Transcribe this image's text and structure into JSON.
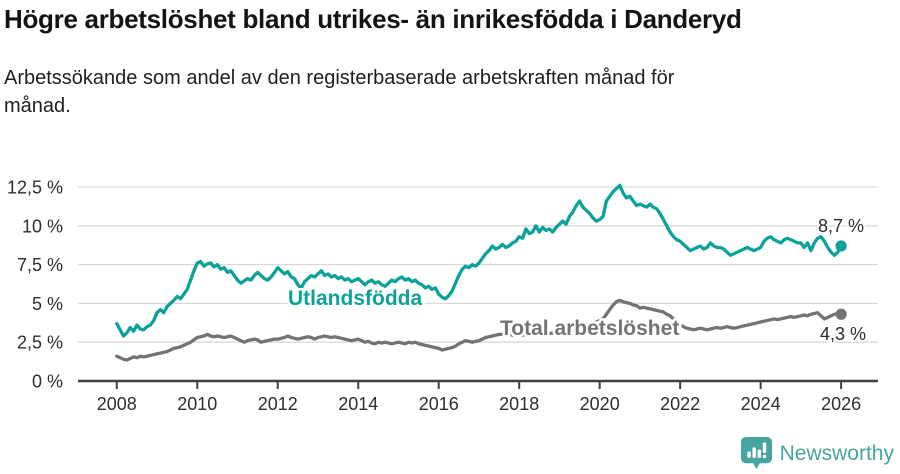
{
  "header": {
    "title": "Högre arbetslöshet bland utrikes- än inrikesfödda i Danderyd",
    "subtitle_lines": [
      "Arbetssökande som andel av den registerbaserade arbetskraften månad för",
      "månad."
    ]
  },
  "footer": {
    "brand": "Newsworthy"
  },
  "colors": {
    "accent_teal": "#0ca29a",
    "series_gray": "#737373",
    "logo_teal": "#47a4a1",
    "grid": "#d9d9d9",
    "axis": "#404040",
    "tick_text": "#2e2e2e"
  },
  "chart_data": {
    "type": "line",
    "title": "Högre arbetslöshet bland utrikes- än inrikesfödda i Danderyd",
    "subtitle": "Arbetssökande som andel av den registerbaserade arbetskraften månad för månad.",
    "x_unit": "year (monthly data)",
    "x_start": 2008.0,
    "x_step": 0.0833333,
    "x_ticks": [
      2008,
      2010,
      2012,
      2014,
      2016,
      2018,
      2020,
      2022,
      2024,
      2026
    ],
    "y_ticks": [
      0,
      2.5,
      5,
      7.5,
      10,
      12.5
    ],
    "y_tick_labels": [
      "0 %",
      "2,5 %",
      "5 %",
      "7,5 %",
      "10 %",
      "12,5 %"
    ],
    "ylim": [
      0,
      13.2
    ],
    "xlim": [
      2007.5,
      2026.9
    ],
    "grid": true,
    "legend_position": "inline-labels",
    "series": [
      {
        "name": "Utlandsfödda",
        "color": "#0ca29a",
        "end_label": "8,7 %",
        "end_value": 8.7,
        "values": [
          3.7,
          3.3,
          2.9,
          3.1,
          3.45,
          3.2,
          3.6,
          3.35,
          3.3,
          3.5,
          3.6,
          3.9,
          4.4,
          4.6,
          4.4,
          4.8,
          5.0,
          5.2,
          5.45,
          5.3,
          5.6,
          5.9,
          6.5,
          7.1,
          7.6,
          7.7,
          7.4,
          7.55,
          7.6,
          7.35,
          7.5,
          7.2,
          7.3,
          7.0,
          7.1,
          6.8,
          6.5,
          6.3,
          6.45,
          6.6,
          6.5,
          6.8,
          7.0,
          6.8,
          6.6,
          6.5,
          6.7,
          7.0,
          7.3,
          7.1,
          6.9,
          7.05,
          6.7,
          6.6,
          6.2,
          6.0,
          6.4,
          6.6,
          6.8,
          6.7,
          6.9,
          7.1,
          6.8,
          6.9,
          6.7,
          6.8,
          6.6,
          6.7,
          6.5,
          6.6,
          6.4,
          6.5,
          6.6,
          6.4,
          6.2,
          6.4,
          6.5,
          6.3,
          6.4,
          6.2,
          6.1,
          6.3,
          6.5,
          6.4,
          6.6,
          6.7,
          6.5,
          6.6,
          6.4,
          6.5,
          6.3,
          6.2,
          6.0,
          6.1,
          5.9,
          6.0,
          5.6,
          5.4,
          5.3,
          5.5,
          5.8,
          6.3,
          6.8,
          7.2,
          7.4,
          7.3,
          7.5,
          7.4,
          7.6,
          7.9,
          8.2,
          8.4,
          8.7,
          8.5,
          8.6,
          8.8,
          8.6,
          8.7,
          8.9,
          9.0,
          9.3,
          9.2,
          9.8,
          9.5,
          9.6,
          10.0,
          9.6,
          9.9,
          9.7,
          9.8,
          9.6,
          9.9,
          10.1,
          10.3,
          10.1,
          10.6,
          10.9,
          11.3,
          11.6,
          11.2,
          11.0,
          10.8,
          10.5,
          10.3,
          10.4,
          10.6,
          11.6,
          11.9,
          12.2,
          12.4,
          12.6,
          12.1,
          11.8,
          11.9,
          11.6,
          11.3,
          11.4,
          11.3,
          11.2,
          11.4,
          11.2,
          11.1,
          10.8,
          10.4,
          10.0,
          9.6,
          9.3,
          9.1,
          9.0,
          8.8,
          8.6,
          8.4,
          8.5,
          8.6,
          8.7,
          8.5,
          8.6,
          8.9,
          8.7,
          8.6,
          8.6,
          8.5,
          8.3,
          8.1,
          8.2,
          8.3,
          8.4,
          8.5,
          8.6,
          8.5,
          8.4,
          8.5,
          8.6,
          9.0,
          9.2,
          9.3,
          9.1,
          9.0,
          8.9,
          9.1,
          9.2,
          9.1,
          9.0,
          8.9,
          8.9,
          8.6,
          8.9,
          8.4,
          8.9,
          9.2,
          9.3,
          9.0,
          8.6,
          8.3,
          8.1,
          8.3,
          8.7
        ]
      },
      {
        "name": "Total arbetslöshet",
        "color": "#737373",
        "end_label": "4,3 %",
        "end_value": 4.3,
        "values": [
          1.6,
          1.5,
          1.4,
          1.35,
          1.45,
          1.55,
          1.5,
          1.6,
          1.55,
          1.6,
          1.65,
          1.7,
          1.75,
          1.8,
          1.85,
          1.9,
          2.0,
          2.1,
          2.15,
          2.2,
          2.3,
          2.4,
          2.5,
          2.65,
          2.8,
          2.85,
          2.9,
          3.0,
          2.9,
          2.85,
          2.9,
          2.85,
          2.8,
          2.85,
          2.9,
          2.8,
          2.7,
          2.6,
          2.5,
          2.6,
          2.65,
          2.7,
          2.65,
          2.5,
          2.55,
          2.6,
          2.65,
          2.7,
          2.7,
          2.75,
          2.8,
          2.9,
          2.8,
          2.75,
          2.7,
          2.75,
          2.8,
          2.85,
          2.8,
          2.7,
          2.8,
          2.85,
          2.9,
          2.85,
          2.8,
          2.85,
          2.8,
          2.75,
          2.7,
          2.65,
          2.6,
          2.65,
          2.7,
          2.6,
          2.5,
          2.55,
          2.45,
          2.4,
          2.5,
          2.45,
          2.5,
          2.45,
          2.4,
          2.45,
          2.5,
          2.45,
          2.4,
          2.5,
          2.45,
          2.5,
          2.4,
          2.35,
          2.3,
          2.25,
          2.2,
          2.15,
          2.1,
          2.0,
          2.05,
          2.1,
          2.15,
          2.25,
          2.4,
          2.5,
          2.6,
          2.55,
          2.5,
          2.55,
          2.6,
          2.7,
          2.8,
          2.85,
          2.9,
          2.95,
          3.0,
          3.0,
          2.95,
          3.0,
          2.95,
          3.0,
          3.0,
          2.95,
          3.0,
          3.05,
          3.0,
          2.95,
          3.0,
          3.05,
          3.0,
          3.05,
          3.1,
          3.05,
          3.1,
          3.15,
          3.1,
          3.2,
          3.25,
          3.3,
          3.35,
          3.4,
          3.5,
          3.6,
          3.7,
          3.8,
          3.9,
          4.0,
          4.3,
          4.6,
          4.9,
          5.1,
          5.2,
          5.1,
          5.05,
          5.0,
          4.9,
          4.85,
          4.7,
          4.75,
          4.7,
          4.65,
          4.6,
          4.55,
          4.5,
          4.45,
          4.3,
          4.2,
          4.0,
          3.8,
          3.6,
          3.5,
          3.4,
          3.35,
          3.3,
          3.35,
          3.4,
          3.35,
          3.3,
          3.35,
          3.4,
          3.45,
          3.4,
          3.45,
          3.5,
          3.45,
          3.4,
          3.45,
          3.5,
          3.55,
          3.6,
          3.65,
          3.7,
          3.75,
          3.8,
          3.85,
          3.9,
          3.95,
          4.0,
          3.95,
          4.0,
          4.05,
          4.1,
          4.15,
          4.1,
          4.15,
          4.2,
          4.25,
          4.2,
          4.3,
          4.35,
          4.4,
          4.2,
          4.0,
          4.1,
          4.2,
          4.3,
          4.35,
          4.3
        ]
      }
    ]
  }
}
